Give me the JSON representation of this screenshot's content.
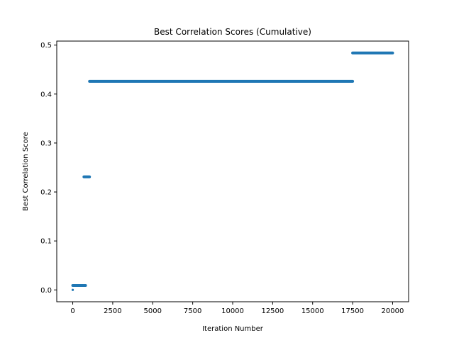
{
  "chart_data": {
    "type": "scatter",
    "title": "Best Correlation Scores (Cumulative)",
    "xlabel": "Iteration Number",
    "ylabel": "Best Correlation Score",
    "xlim": [
      -1000,
      21000
    ],
    "ylim": [
      -0.0242,
      0.5082
    ],
    "xticks": [
      0,
      2500,
      5000,
      7500,
      10000,
      12500,
      15000,
      17500,
      20000
    ],
    "yticks": [
      0.0,
      0.1,
      0.2,
      0.3,
      0.4,
      0.5
    ],
    "xtick_labels": [
      "0",
      "2500",
      "5000",
      "7500",
      "10000",
      "12500",
      "15000",
      "17500",
      "20000"
    ],
    "ytick_labels": [
      "0.0",
      "0.1",
      "0.2",
      "0.3",
      "0.4",
      "0.5"
    ],
    "grid": false,
    "series_color": "#1f77b4",
    "series": [
      {
        "segments": [
          {
            "x_start": 0,
            "x_end": 0,
            "y": 0.0
          },
          {
            "x_start": 0,
            "x_end": 800,
            "y": 0.009
          },
          {
            "x_start": 700,
            "x_end": 1050,
            "y": 0.231
          },
          {
            "x_start": 1050,
            "x_end": 17500,
            "y": 0.426
          },
          {
            "x_start": 17500,
            "x_end": 20000,
            "y": 0.484
          }
        ]
      }
    ]
  }
}
